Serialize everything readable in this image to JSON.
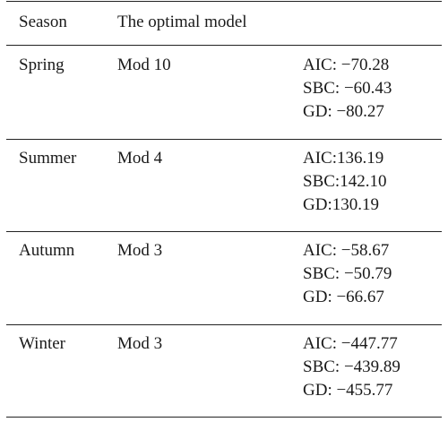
{
  "header": {
    "season": "Season",
    "model": "The optimal model"
  },
  "rows": [
    {
      "season": "Spring",
      "model": "Mod 10",
      "metrics": [
        "AIC: −70.28",
        "SBC: −60.43",
        "GD: −80.27"
      ]
    },
    {
      "season": "Summer",
      "model": "Mod 4",
      "metrics": [
        "AIC:136.19",
        "SBC:142.10",
        "GD:130.19"
      ]
    },
    {
      "season": "Autumn",
      "model": "Mod 3",
      "metrics": [
        "AIC: −58.67",
        "SBC: −50.79",
        "GD: −66.67"
      ]
    },
    {
      "season": "Winter",
      "model": "Mod 3",
      "metrics": [
        "AIC: −447.77",
        "SBC: −439.89",
        "GD: −455.77"
      ]
    }
  ]
}
